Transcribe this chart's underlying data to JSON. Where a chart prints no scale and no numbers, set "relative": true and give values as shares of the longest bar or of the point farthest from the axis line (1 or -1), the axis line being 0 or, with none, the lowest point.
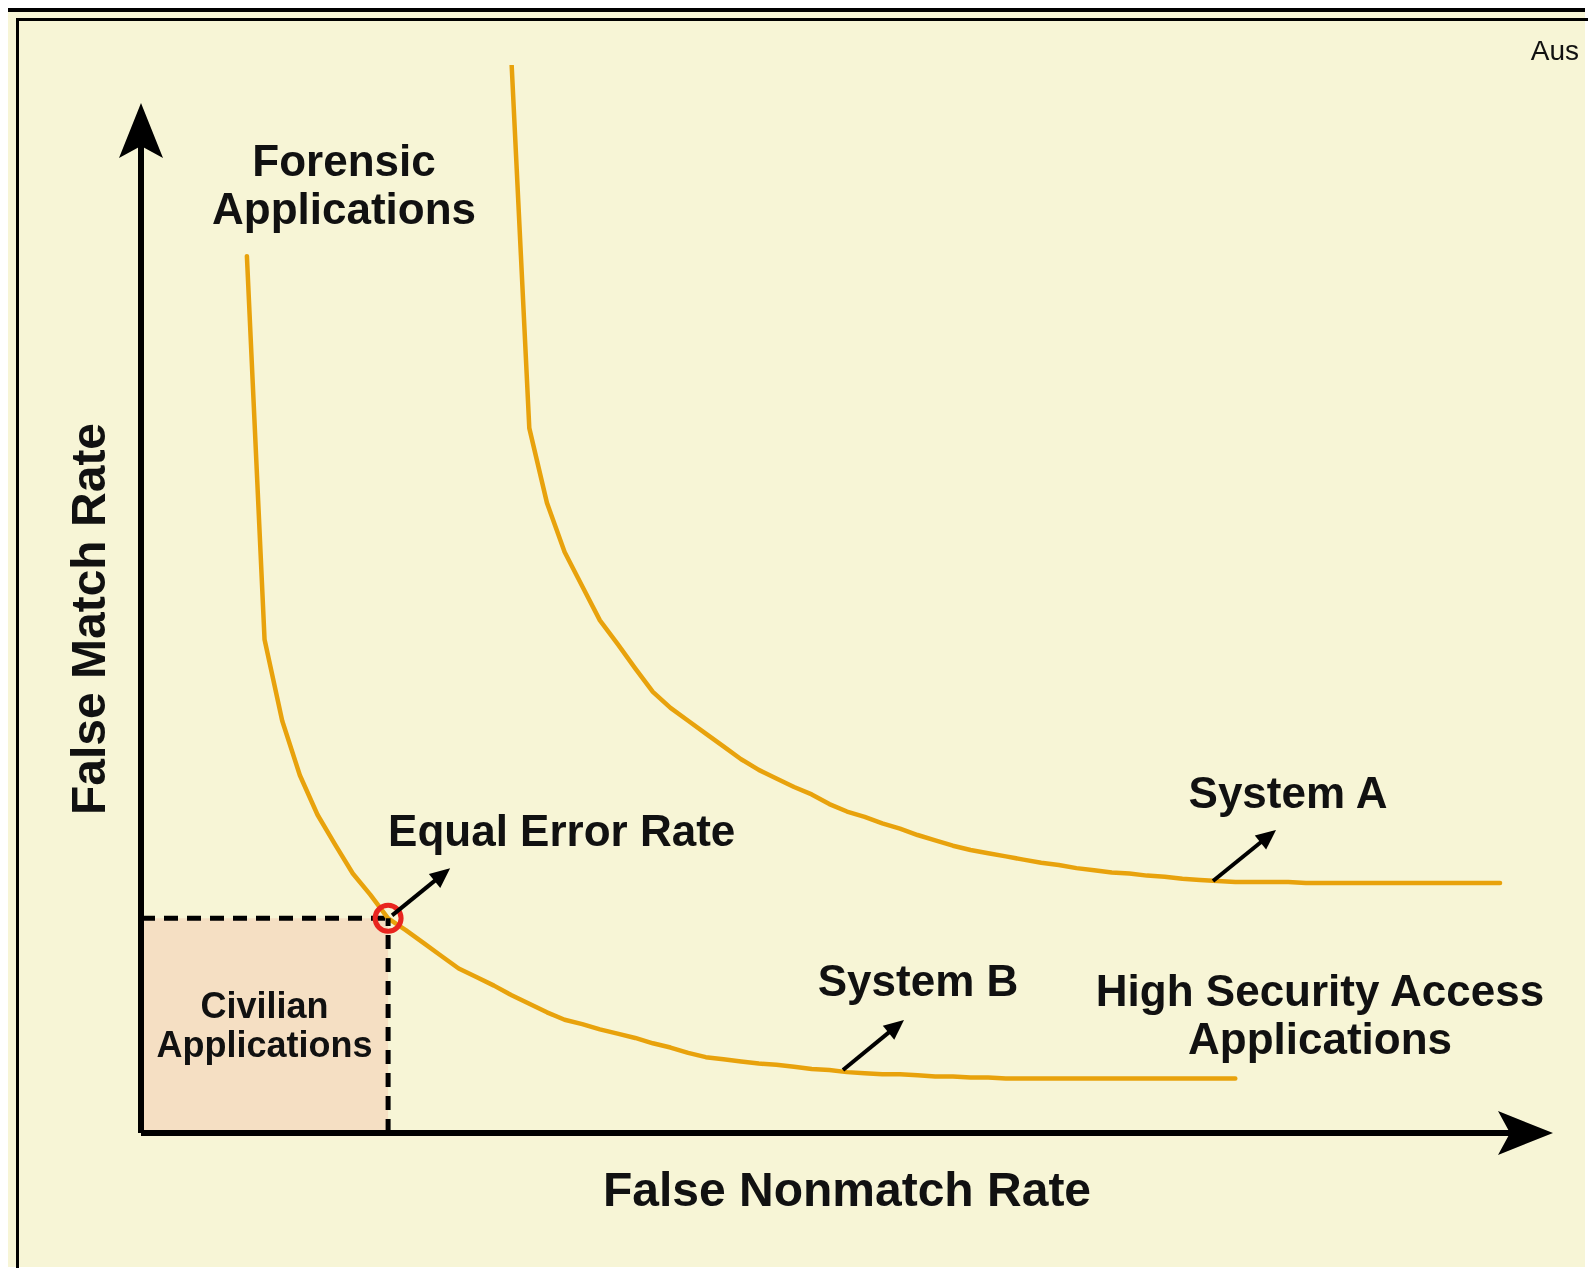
{
  "chart_data": {
    "type": "line",
    "relative": true,
    "xlabel": "False Nonmatch Rate",
    "ylabel": "False Match Rate",
    "grid": false,
    "legend": false,
    "marker": "none",
    "line_style": "solid",
    "categories": [
      null,
      null,
      null,
      null,
      null,
      null,
      null,
      null,
      null,
      null,
      null,
      null,
      null,
      null,
      null,
      null,
      null,
      null,
      null,
      null,
      null,
      null,
      null,
      null,
      null,
      null,
      null,
      null,
      null,
      null,
      null,
      null,
      null,
      null,
      null,
      null,
      null,
      null,
      null,
      null,
      null,
      null,
      null,
      null,
      null,
      null,
      null,
      null,
      null,
      null,
      null,
      null,
      null,
      null,
      null,
      null,
      null,
      null,
      null,
      null,
      null,
      null,
      null,
      null,
      null,
      null,
      null,
      null,
      null,
      null,
      null,
      null,
      null,
      null,
      null,
      null,
      null,
      null,
      null,
      null,
      null
    ],
    "series": [
      {
        "name": "System A",
        "color": "#e8a20c",
        "values": [
          null,
          null,
          null,
          null,
          null,
          null,
          null,
          null,
          null,
          null,
          null,
          null,
          null,
          null,
          null,
          null,
          null,
          null,
          null,
          null,
          null,
          1.0,
          0.66,
          0.59,
          0.544,
          0.512,
          0.48,
          0.458,
          0.435,
          0.413,
          0.398,
          0.386,
          0.374,
          0.362,
          0.35,
          0.34,
          0.332,
          0.324,
          0.317,
          0.308,
          0.301,
          0.296,
          0.29,
          0.285,
          0.279,
          0.274,
          0.269,
          0.265,
          0.262,
          0.259,
          0.256,
          0.253,
          0.251,
          0.248,
          0.246,
          0.244,
          0.243,
          0.241,
          0.24,
          0.238,
          0.237,
          0.236,
          0.235,
          0.235,
          0.235,
          0.235,
          0.234,
          0.234,
          0.234,
          0.234,
          0.234,
          0.234,
          0.234,
          0.234,
          0.234,
          0.234,
          0.234,
          0.234,
          null,
          null,
          null
        ]
      },
      {
        "name": "System B",
        "color": "#e8a20c",
        "values": [
          null,
          null,
          null,
          null,
          null,
          null,
          0.821,
          0.462,
          0.386,
          0.335,
          0.298,
          0.27,
          0.243,
          0.223,
          0.201,
          0.19,
          0.178,
          0.166,
          0.154,
          0.146,
          0.138,
          0.129,
          0.121,
          0.113,
          0.106,
          0.102,
          0.097,
          0.093,
          0.089,
          0.084,
          0.08,
          0.075,
          0.071,
          0.069,
          0.067,
          0.065,
          0.064,
          0.062,
          0.06,
          0.059,
          0.057,
          0.056,
          0.055,
          0.055,
          0.054,
          0.053,
          0.053,
          0.052,
          0.052,
          0.051,
          0.051,
          0.051,
          0.051,
          0.051,
          0.051,
          0.051,
          0.051,
          0.051,
          0.051,
          0.051,
          0.051,
          0.051,
          0.051,
          null,
          null,
          null,
          null,
          null,
          null,
          null,
          null,
          null,
          null,
          null,
          null,
          null,
          null,
          null,
          null,
          null,
          null
        ]
      }
    ],
    "ref_lines": [
      {
        "axis": "y",
        "value": 0.201,
        "line_style": "dashed",
        "color": "#000000"
      }
    ],
    "bands": [
      {
        "axis": "y",
        "from": 0,
        "to": 0.201,
        "label": "Civilian Applications",
        "color": "#f5dfc3"
      }
    ],
    "annotations": [
      "Forensic Applications",
      "High Security Access Applications",
      "Equal Error Rate",
      "Aus"
    ]
  }
}
